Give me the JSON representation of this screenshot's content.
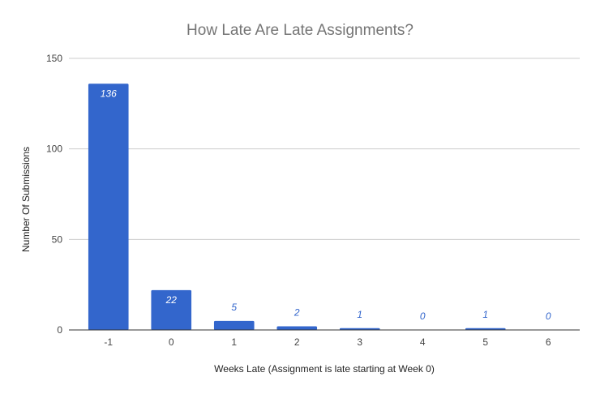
{
  "chart_data": {
    "type": "bar",
    "title": "How Late Are Late Assignments?",
    "xlabel": "Weeks Late (Assignment is late starting at Week 0)",
    "ylabel": "Number Of Submissions",
    "categories": [
      "-1",
      "0",
      "1",
      "2",
      "3",
      "4",
      "5",
      "6"
    ],
    "values": [
      136,
      22,
      5,
      2,
      1,
      0,
      1,
      0
    ],
    "data_labels": [
      "136",
      "22",
      "5",
      "2",
      "1",
      "0",
      "1",
      "0"
    ],
    "ylim": [
      0,
      150
    ],
    "yticks": [
      0,
      50,
      100,
      150
    ],
    "grid": true,
    "legend": "none",
    "colors": {
      "bar": "#3366cc",
      "label_inside": "#ffffff",
      "label_outside": "#3366cc",
      "gridline": "#cccccc",
      "baseline": "#333333"
    }
  }
}
